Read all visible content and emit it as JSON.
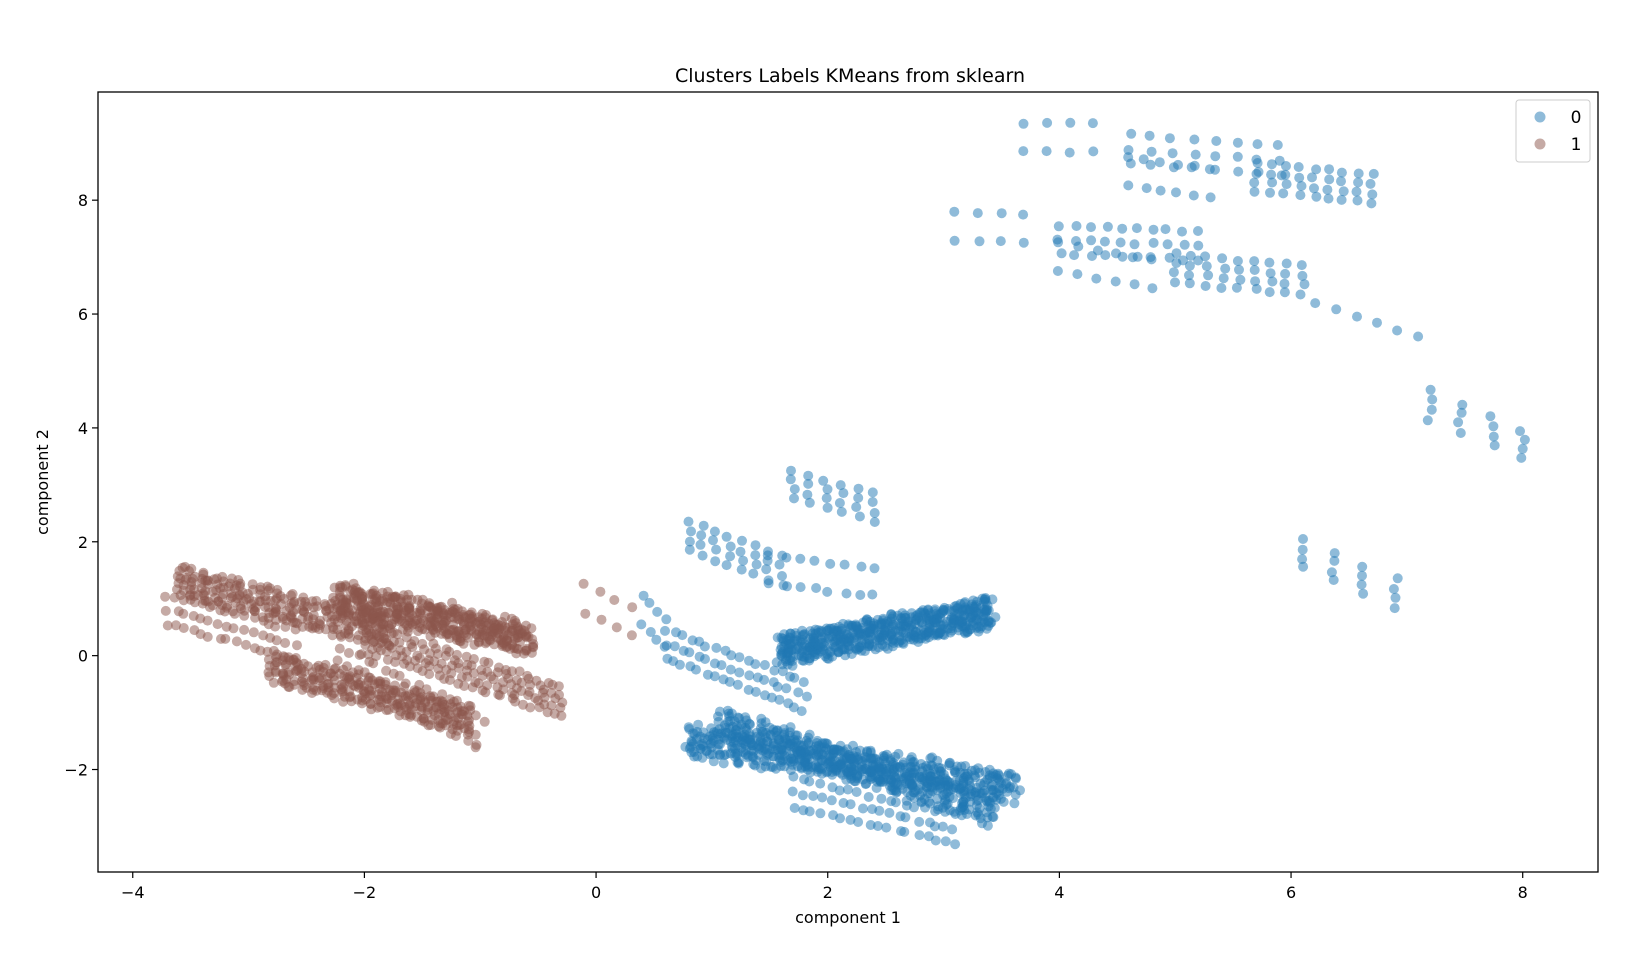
{
  "chart_data": {
    "type": "scatter",
    "title": "Clusters Labels KMeans from sklearn",
    "xlabel": "component 1",
    "ylabel": "component 2",
    "xlim": [
      -4.3,
      8.65
    ],
    "ylim": [
      -3.8,
      9.9
    ],
    "xticks": [
      -4,
      -2,
      0,
      2,
      4,
      6,
      8
    ],
    "xtick_labels": [
      "−4",
      "−2",
      "0",
      "2",
      "4",
      "6",
      "8"
    ],
    "yticks": [
      -2,
      0,
      2,
      4,
      6,
      8
    ],
    "ytick_labels": [
      "−2",
      "0",
      "2",
      "4",
      "6",
      "8"
    ],
    "grid": false,
    "legend_position": "top-right",
    "marker_alpha": 0.5,
    "series": [
      {
        "name": "0",
        "color": "#1f77b4",
        "clusters": [
          {
            "x0": 1.6,
            "y0": 0.1,
            "x1": 3.4,
            "y1": 0.75,
            "rows": 14,
            "n": 36,
            "spread": 0.1
          },
          {
            "x0": 0.8,
            "y0": -1.5,
            "x1": 3.6,
            "y1": -2.3,
            "rows": 11,
            "n": 38,
            "spread": 0.12
          },
          {
            "x0": 1.1,
            "y0": -1.2,
            "x1": 3.4,
            "y1": -2.7,
            "rows": 10,
            "n": 34,
            "spread": 0.12
          },
          {
            "x0": 1.7,
            "y0": -2.4,
            "x1": 3.1,
            "y1": -3.05,
            "rows": 3,
            "n": 18,
            "spread": 0.06
          },
          {
            "x0": 0.6,
            "y0": 0.2,
            "x1": 1.8,
            "y1": -0.7,
            "rows": 3,
            "n": 18,
            "spread": 0.05
          },
          {
            "x0": 1.5,
            "y0": 1.5,
            "x1": 2.4,
            "y1": 1.3,
            "rows": 2,
            "n": 8,
            "spread": 0.05
          },
          {
            "x0": 0.8,
            "y0": 2.1,
            "x1": 1.6,
            "y1": 1.5,
            "rows": 4,
            "n": 8,
            "spread": 0.04
          },
          {
            "x0": 1.7,
            "y0": 3.0,
            "x1": 2.4,
            "y1": 2.6,
            "rows": 4,
            "n": 6,
            "spread": 0.04
          },
          {
            "x0": 0.4,
            "y0": 0.8,
            "x1": 0.6,
            "y1": 0.4,
            "rows": 2,
            "n": 4,
            "spread": 0.03
          },
          {
            "x0": 3.1,
            "y0": 7.55,
            "x1": 3.7,
            "y1": 7.5,
            "rows": 2,
            "n": 4,
            "spread": 0.03
          },
          {
            "x0": 3.7,
            "y0": 9.1,
            "x1": 4.3,
            "y1": 9.1,
            "rows": 2,
            "n": 4,
            "spread": 0.03
          },
          {
            "x0": 4.6,
            "y0": 8.9,
            "x1": 5.9,
            "y1": 8.7,
            "rows": 3,
            "n": 8,
            "spread": 0.04
          },
          {
            "x0": 4.6,
            "y0": 8.5,
            "x1": 5.3,
            "y1": 8.3,
            "rows": 2,
            "n": 6,
            "spread": 0.03
          },
          {
            "x0": 5.7,
            "y0": 8.4,
            "x1": 6.7,
            "y1": 8.2,
            "rows": 4,
            "n": 9,
            "spread": 0.04
          },
          {
            "x0": 4.0,
            "y0": 7.3,
            "x1": 5.2,
            "y1": 7.2,
            "rows": 3,
            "n": 10,
            "spread": 0.04
          },
          {
            "x0": 4.0,
            "y0": 7.0,
            "x1": 4.8,
            "y1": 6.7,
            "rows": 2,
            "n": 6,
            "spread": 0.03
          },
          {
            "x0": 5.0,
            "y0": 6.8,
            "x1": 6.1,
            "y1": 6.6,
            "rows": 4,
            "n": 9,
            "spread": 0.04
          },
          {
            "x0": 6.2,
            "y0": 6.2,
            "x1": 7.1,
            "y1": 5.6,
            "rows": 1,
            "n": 6,
            "spread": 0.02
          },
          {
            "x0": 7.2,
            "y0": 4.4,
            "x1": 8.0,
            "y1": 3.7,
            "rows": 4,
            "n": 4,
            "spread": 0.05
          },
          {
            "x0": 6.1,
            "y0": 1.8,
            "x1": 6.9,
            "y1": 1.1,
            "rows": 4,
            "n": 4,
            "spread": 0.05
          }
        ]
      },
      {
        "name": "1",
        "color": "#8c564b",
        "clusters": [
          {
            "x0": -3.6,
            "y0": 1.3,
            "x1": -1.8,
            "y1": 0.4,
            "rows": 8,
            "n": 30,
            "spread": 0.08
          },
          {
            "x0": -2.2,
            "y0": 1.0,
            "x1": -0.6,
            "y1": 0.3,
            "rows": 14,
            "n": 28,
            "spread": 0.14
          },
          {
            "x0": -3.7,
            "y0": 0.8,
            "x1": -2.6,
            "y1": 0.2,
            "rows": 3,
            "n": 16,
            "spread": 0.05
          },
          {
            "x0": -2.8,
            "y0": -0.2,
            "x1": -1.1,
            "y1": -1.1,
            "rows": 9,
            "n": 28,
            "spread": 0.08
          },
          {
            "x0": -2.0,
            "y0": 0.3,
            "x1": -0.3,
            "y1": -0.8,
            "rows": 5,
            "n": 28,
            "spread": 0.06
          },
          {
            "x0": -2.2,
            "y0": -0.1,
            "x1": -1.0,
            "y1": -1.4,
            "rows": 3,
            "n": 18,
            "spread": 0.08
          },
          {
            "x0": -0.1,
            "y0": 1.0,
            "x1": 0.3,
            "y1": 0.6,
            "rows": 2,
            "n": 4,
            "spread": 0.03
          }
        ]
      }
    ]
  }
}
